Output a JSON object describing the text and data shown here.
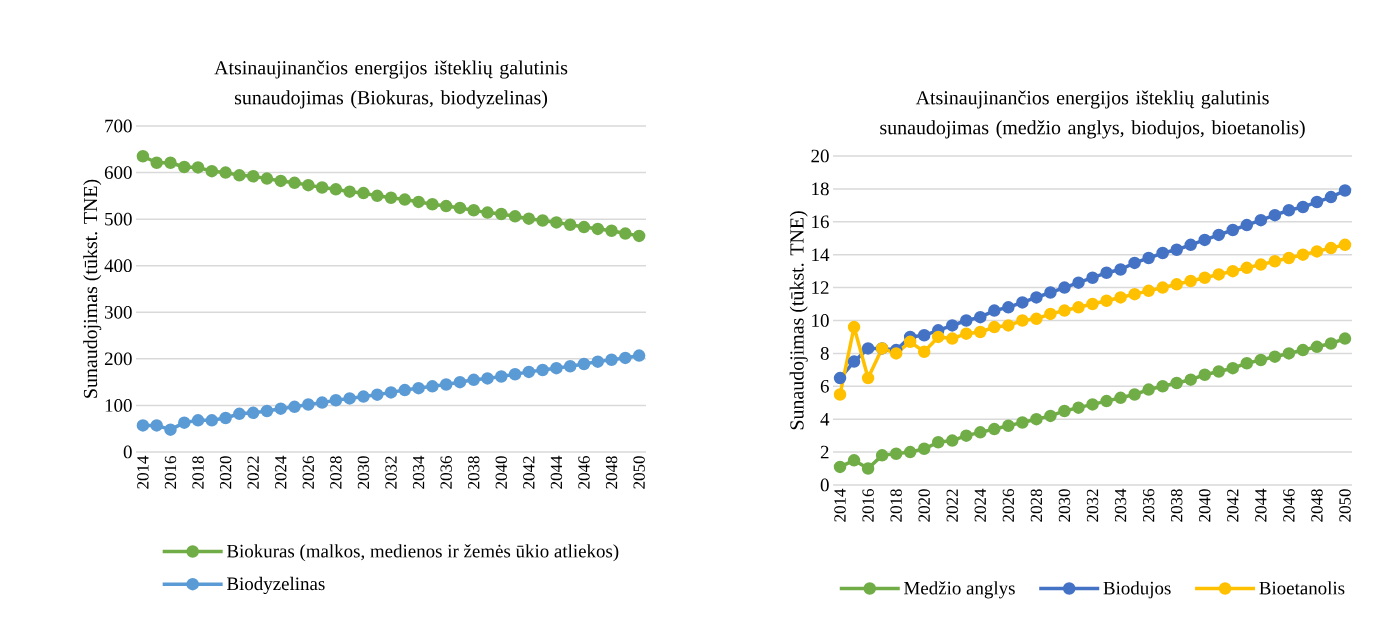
{
  "chart_data": [
    {
      "type": "line",
      "title": "Atsinaujinančios energijos išteklių galutinis sunaudojimas (Biokuras, biodyzelinas)",
      "ylabel": "Sunaudojimas (tūkst. TNE)",
      "x": [
        2014,
        2015,
        2016,
        2017,
        2018,
        2019,
        2020,
        2021,
        2022,
        2023,
        2024,
        2025,
        2026,
        2027,
        2028,
        2029,
        2030,
        2031,
        2032,
        2033,
        2034,
        2035,
        2036,
        2037,
        2038,
        2039,
        2040,
        2041,
        2042,
        2043,
        2044,
        2045,
        2046,
        2047,
        2048,
        2049,
        2050
      ],
      "xlim": [
        2013.5,
        2050.5
      ],
      "xticks": [
        2014,
        2016,
        2018,
        2020,
        2022,
        2024,
        2026,
        2028,
        2030,
        2032,
        2034,
        2036,
        2038,
        2040,
        2042,
        2044,
        2046,
        2048,
        2050
      ],
      "ylim": [
        0,
        700
      ],
      "yticks": [
        0,
        100,
        200,
        300,
        400,
        500,
        600,
        700
      ],
      "grid": "y",
      "legend": "bottom",
      "marker": "circle",
      "line_style": "solid",
      "series": [
        {
          "name": "Biokuras (malkos, medienos ir žemės ūkio atliekos)",
          "color": "#70ad47",
          "values": [
            635,
            621,
            621,
            612,
            611,
            603,
            600,
            594,
            592,
            587,
            582,
            578,
            573,
            568,
            564,
            559,
            556,
            550,
            546,
            542,
            537,
            532,
            528,
            524,
            519,
            514,
            511,
            506,
            501,
            497,
            493,
            488,
            483,
            479,
            475,
            469,
            464
          ]
        },
        {
          "name": "Biodyzelinas",
          "color": "#5b9bd5",
          "values": [
            57,
            57,
            48,
            63,
            68,
            68,
            73,
            82,
            84,
            88,
            93,
            97,
            102,
            106,
            111,
            115,
            119,
            123,
            128,
            133,
            137,
            141,
            145,
            150,
            155,
            158,
            162,
            167,
            172,
            176,
            180,
            184,
            189,
            194,
            198,
            202,
            207
          ]
        }
      ]
    },
    {
      "type": "line",
      "title": "Atsinaujinančios energijos išteklių galutinis sunaudojimas (medžio anglys, biodujos, bioetanolis)",
      "ylabel": "Sunaudojimas (tūkst. TNE)",
      "x": [
        2014,
        2015,
        2016,
        2017,
        2018,
        2019,
        2020,
        2021,
        2022,
        2023,
        2024,
        2025,
        2026,
        2027,
        2028,
        2029,
        2030,
        2031,
        2032,
        2033,
        2034,
        2035,
        2036,
        2037,
        2038,
        2039,
        2040,
        2041,
        2042,
        2043,
        2044,
        2045,
        2046,
        2047,
        2048,
        2049,
        2050
      ],
      "xlim": [
        2013.5,
        2050.5
      ],
      "xticks": [
        2014,
        2016,
        2018,
        2020,
        2022,
        2024,
        2026,
        2028,
        2030,
        2032,
        2034,
        2036,
        2038,
        2040,
        2042,
        2044,
        2046,
        2048,
        2050
      ],
      "ylim": [
        0,
        20
      ],
      "yticks": [
        0,
        2,
        4,
        6,
        8,
        10,
        12,
        14,
        16,
        18,
        20
      ],
      "grid": "y",
      "legend": "bottom",
      "marker": "circle",
      "line_style": "solid",
      "series": [
        {
          "name": "Medžio anglys",
          "color": "#70ad47",
          "values": [
            1.1,
            1.5,
            1.0,
            1.8,
            1.9,
            2.0,
            2.2,
            2.6,
            2.7,
            3.0,
            3.2,
            3.4,
            3.6,
            3.8,
            4.0,
            4.2,
            4.5,
            4.7,
            4.9,
            5.1,
            5.3,
            5.5,
            5.8,
            6.0,
            6.2,
            6.4,
            6.7,
            6.9,
            7.1,
            7.4,
            7.6,
            7.8,
            8.0,
            8.2,
            8.4,
            8.6,
            8.9
          ]
        },
        {
          "name": "Biodujos",
          "color": "#4472c4",
          "values": [
            6.5,
            7.5,
            8.3,
            8.3,
            8.2,
            9.0,
            9.1,
            9.4,
            9.7,
            10.0,
            10.2,
            10.6,
            10.8,
            11.1,
            11.4,
            11.7,
            12.0,
            12.3,
            12.6,
            12.9,
            13.1,
            13.5,
            13.8,
            14.1,
            14.3,
            14.6,
            14.9,
            15.2,
            15.5,
            15.8,
            16.1,
            16.4,
            16.7,
            16.9,
            17.2,
            17.5,
            17.9
          ]
        },
        {
          "name": "Bioetanolis",
          "color": "#ffc000",
          "values": [
            5.5,
            9.6,
            6.5,
            8.3,
            8.0,
            8.7,
            8.1,
            9.0,
            8.9,
            9.2,
            9.3,
            9.6,
            9.7,
            10.0,
            10.1,
            10.4,
            10.6,
            10.8,
            11.0,
            11.2,
            11.4,
            11.6,
            11.8,
            12.0,
            12.2,
            12.4,
            12.6,
            12.8,
            13.0,
            13.2,
            13.4,
            13.6,
            13.8,
            14.0,
            14.2,
            14.4,
            14.6
          ]
        }
      ]
    }
  ]
}
